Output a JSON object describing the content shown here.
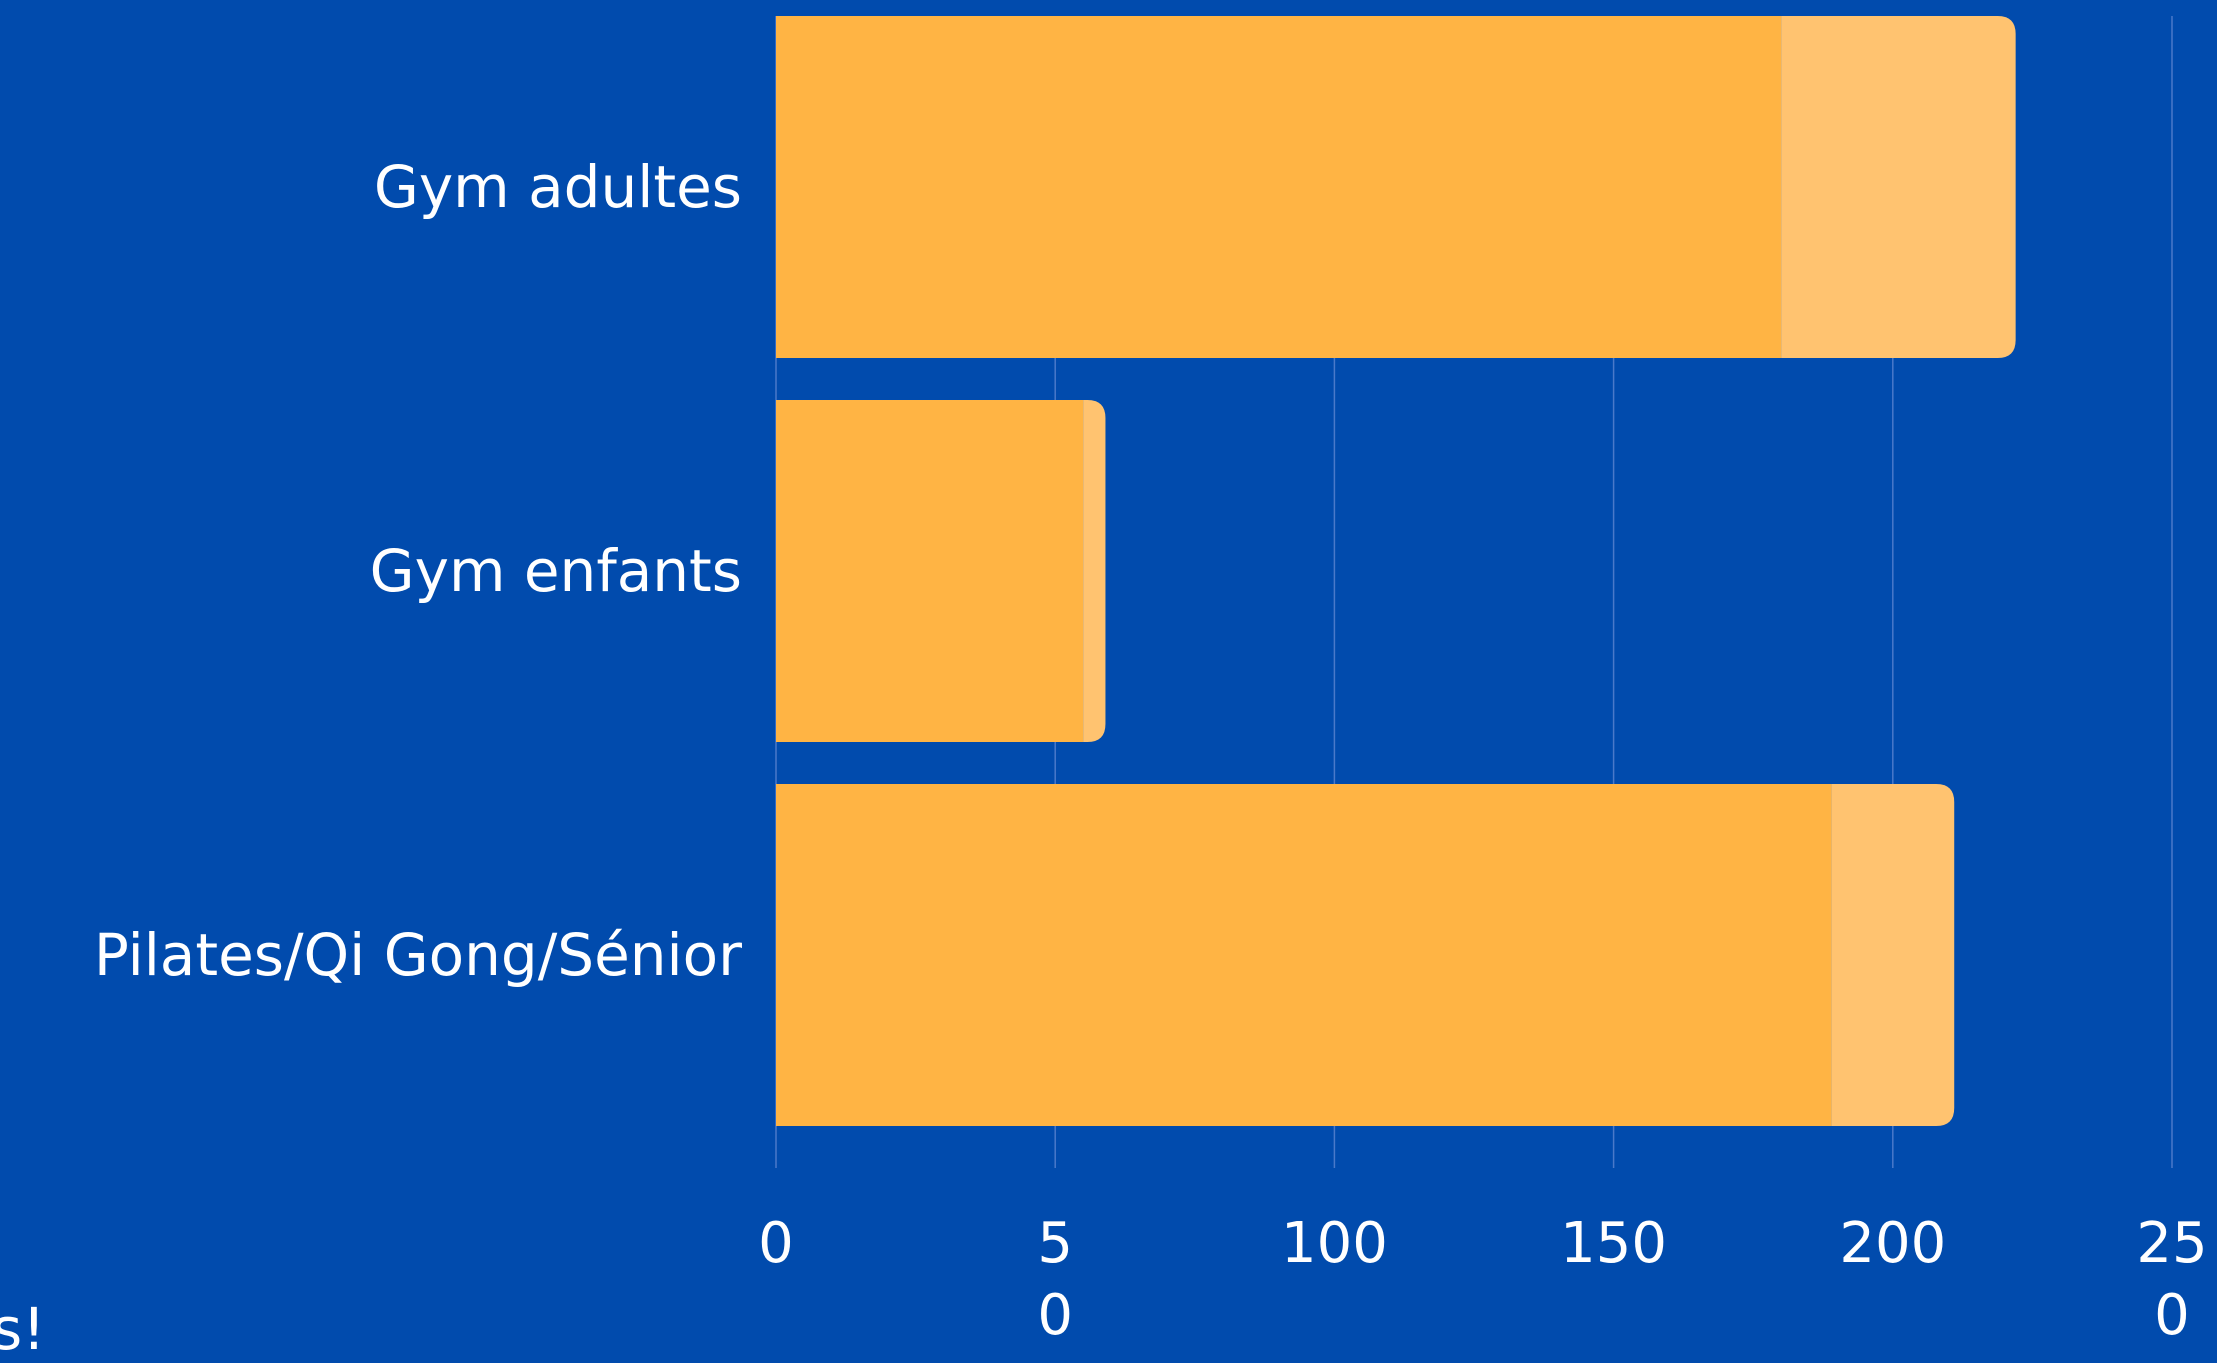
{
  "page": {
    "background": "#014bad"
  },
  "stray_text": "s!",
  "chart_data": {
    "type": "bar",
    "orientation": "horizontal",
    "stacked": true,
    "categories": [
      "Gym adultes",
      "Gym enfants",
      "Pilates/Qi Gong/Sénior"
    ],
    "series": [
      {
        "values": [
          180,
          55,
          189
        ],
        "color": "#ffb444"
      },
      {
        "values": [
          42,
          4,
          22
        ],
        "color": "#ffc370"
      }
    ],
    "xlim": [
      0,
      250
    ],
    "x_ticks": [
      {
        "value": 0,
        "lines": [
          "0"
        ]
      },
      {
        "value": 50,
        "lines": [
          "5",
          "0"
        ]
      },
      {
        "value": 100,
        "lines": [
          "100"
        ]
      },
      {
        "value": 150,
        "lines": [
          "150"
        ]
      },
      {
        "value": 200,
        "lines": [
          "200"
        ]
      },
      {
        "value": 250,
        "lines": [
          "25",
          "0"
        ]
      }
    ],
    "grid": true,
    "gridline_color": "#4a79c9",
    "title": "",
    "xlabel": "",
    "ylabel": ""
  }
}
